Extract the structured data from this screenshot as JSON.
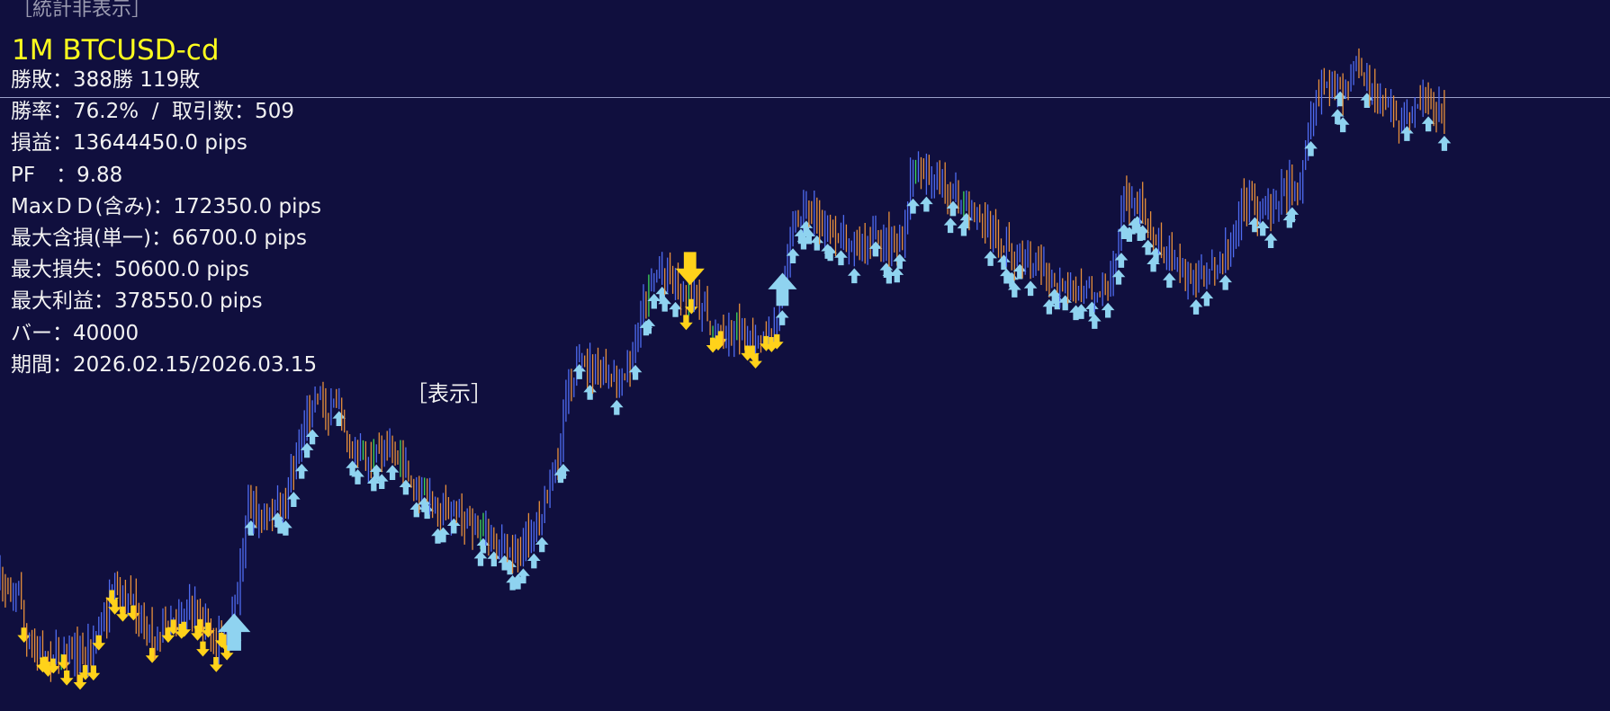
{
  "chart": {
    "symbol_title": "1M BTCUSD-cd",
    "colors": {
      "background": "#100f3e",
      "bar_up": "#4f6cf2",
      "bar_down": "#e8903c",
      "bar_flat": "#3ddc5a",
      "buy_arrow": "#8fd3f0",
      "sell_arrow": "#ffd21a",
      "price_line": "#9aa0c8",
      "title": "#ffff1e"
    },
    "icons": {
      "buy": "arrow-up-icon",
      "sell": "arrow-down-icon"
    }
  },
  "controls": {
    "hide_stats": "［統計非表示］",
    "show": "［表示］"
  },
  "stats": [
    "勝敗：388勝 119敗",
    "勝率：76.2%  /  取引数：509",
    "損益：13644450.0 pips",
    "PF　：9.88",
    "MaxＤＤ(含み)：172350.0 pips",
    "最大含損(単一)：66700.0 pips",
    "最大損失：50600.0 pips",
    "最大利益：378550.0 pips",
    "バー：40000",
    "期間：2026.02.15/2026.03.15"
  ]
}
